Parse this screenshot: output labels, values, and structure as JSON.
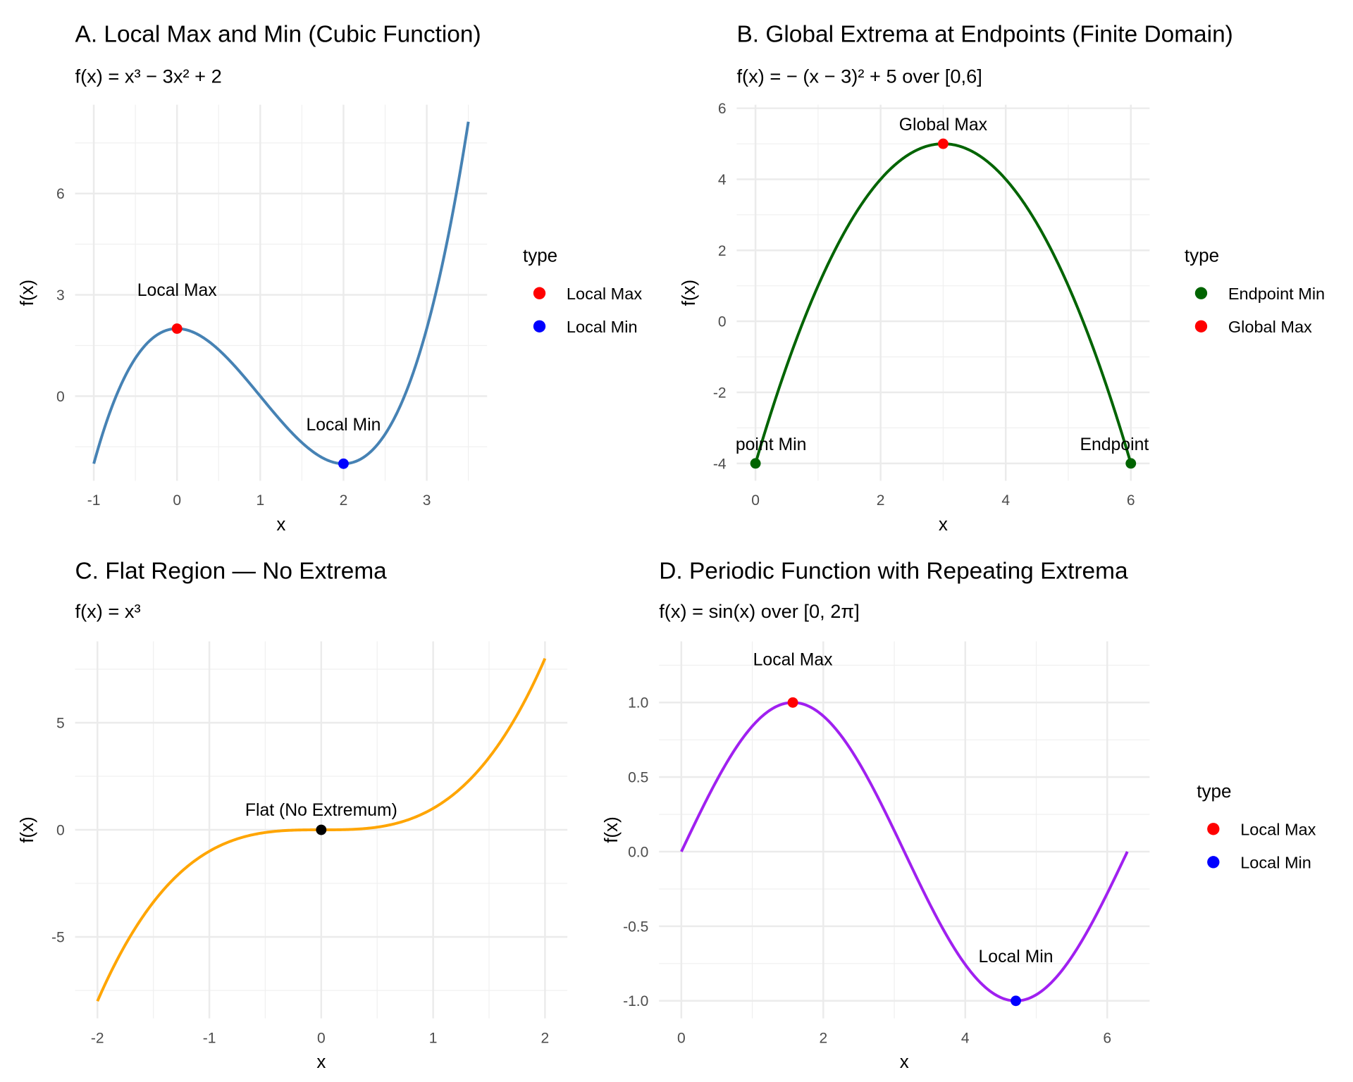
{
  "chart_data": [
    {
      "type": "line",
      "title": "A. Local Max and Min (Cubic Function)",
      "subtitle": "f(x) = x³ − 3x² + 2",
      "xlabel": "x",
      "ylabel": "f(x)",
      "expression": "cubic",
      "domain": [
        -1,
        3.5
      ],
      "xlim": [
        -1.225,
        3.725
      ],
      "ylim": [
        -2.506,
        8.63
      ],
      "xticks": [
        -1,
        0,
        1,
        2,
        3
      ],
      "xminor": [
        -0.5,
        0.5,
        1.5,
        2.5,
        3.5
      ],
      "yticks": [
        0,
        3,
        6
      ],
      "yminor": [
        -1.5,
        1.5,
        4.5,
        7.5
      ],
      "line_color": "#4682B4",
      "points": [
        {
          "x": 0,
          "y": 2,
          "type": "Local Max"
        },
        {
          "x": 2,
          "y": -2,
          "type": "Local Min"
        }
      ],
      "annotations": [
        {
          "x": 0,
          "y": 3.15,
          "text": "Local Max"
        },
        {
          "x": 2,
          "y": -0.83,
          "text": "Local Min"
        }
      ],
      "legend": {
        "title": "type",
        "position": "right",
        "entries": [
          {
            "label": "Local Max",
            "color": "#FF0000"
          },
          {
            "label": "Local Min",
            "color": "#0000FF"
          }
        ]
      }
    },
    {
      "type": "line",
      "title": "B. Global Extrema at Endpoints (Finite Domain)",
      "subtitle": "f(x) = − (x − 3)² + 5   over [0,6]",
      "xlabel": "x",
      "ylabel": "f(x)",
      "expression": "parabola",
      "domain": [
        0,
        6
      ],
      "xlim": [
        -0.3,
        6.3
      ],
      "ylim": [
        -4.49,
        6.1
      ],
      "xticks": [
        0,
        2,
        4,
        6
      ],
      "xminor": [
        1,
        3,
        5
      ],
      "yticks": [
        -4,
        -2,
        0,
        2,
        4,
        6
      ],
      "yminor": [
        -3,
        -1,
        1,
        3,
        5
      ],
      "line_color": "#006400",
      "points": [
        {
          "x": 0,
          "y": -4,
          "type": "Endpoint Min"
        },
        {
          "x": 3,
          "y": 5,
          "type": "Global Max"
        },
        {
          "x": 6,
          "y": -4,
          "type": "Endpoint Min"
        }
      ],
      "annotations": [
        {
          "x": 3,
          "y": 5.55,
          "text": "Global Max"
        },
        {
          "x": 0,
          "y": -3.45,
          "text": "Endpoint Min"
        },
        {
          "x": 6,
          "y": -3.45,
          "text": "Endpoint Min"
        }
      ],
      "legend": {
        "title": "type",
        "position": "right",
        "entries": [
          {
            "label": "Endpoint Min",
            "color": "#006400"
          },
          {
            "label": "Global Max",
            "color": "#FF0000"
          }
        ]
      }
    },
    {
      "type": "line",
      "title": "C. Flat Region —  No Extrema",
      "subtitle": "f(x) = x³",
      "xlabel": "x",
      "ylabel": "f(x)",
      "expression": "cube",
      "domain": [
        -2,
        2
      ],
      "xlim": [
        -2.2,
        2.2
      ],
      "ylim": [
        -8.8,
        8.8
      ],
      "xticks": [
        -2,
        -1,
        0,
        1,
        2
      ],
      "xminor": [
        -1.5,
        -0.5,
        0.5,
        1.5
      ],
      "yticks": [
        -5,
        0,
        5
      ],
      "yminor": [
        -7.5,
        -2.5,
        2.5,
        7.5
      ],
      "line_color": "#FFA500",
      "points": [
        {
          "x": 0,
          "y": 0,
          "type": "Flat",
          "color": "#000000"
        }
      ],
      "annotations": [
        {
          "x": 0,
          "y": 0.95,
          "text": "Flat (No Extremum)"
        }
      ],
      "legend": null
    },
    {
      "type": "line",
      "title": "D. Periodic Function with Repeating Extrema",
      "subtitle": "f(x) = sin(x)   over [0, 2π]",
      "xlabel": "x",
      "ylabel": "f(x)",
      "expression": "sine",
      "domain": [
        0,
        6.2832
      ],
      "xlim": [
        -0.314,
        6.597
      ],
      "ylim": [
        -1.117,
        1.41
      ],
      "xticks": [
        0,
        2,
        4,
        6
      ],
      "xminor": [
        1,
        3,
        5
      ],
      "yticks": [
        -1.0,
        -0.5,
        0.0,
        0.5,
        1.0
      ],
      "ytick_labels": [
        "-1.0",
        "-0.5",
        "0.0",
        "0.5",
        "1.0"
      ],
      "yminor": [
        -0.75,
        -0.25,
        0.25,
        0.75,
        1.25
      ],
      "line_color": "#A020F0",
      "points": [
        {
          "x": 1.5708,
          "y": 1,
          "type": "Local Max"
        },
        {
          "x": 4.7124,
          "y": -1,
          "type": "Local Min"
        }
      ],
      "annotations": [
        {
          "x": 1.5708,
          "y": 1.29,
          "text": "Local Max"
        },
        {
          "x": 4.7124,
          "y": -0.7,
          "text": "Local Min"
        }
      ],
      "legend": {
        "title": "type",
        "position": "right",
        "entries": [
          {
            "label": "Local Max",
            "color": "#FF0000"
          },
          {
            "label": "Local Min",
            "color": "#0000FF"
          }
        ]
      }
    }
  ]
}
